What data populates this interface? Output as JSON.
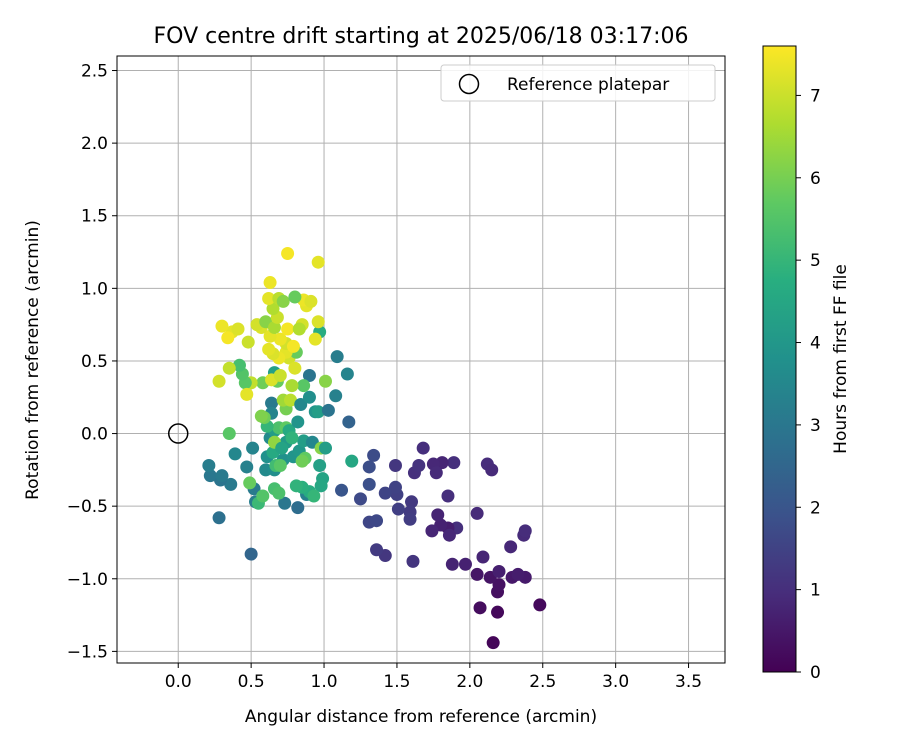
{
  "chart_data": {
    "type": "scatter",
    "title": "FOV centre drift starting at 2025/06/18 03:17:06",
    "xlabel": "Angular distance from reference (arcmin)",
    "ylabel": "Rotation from reference (arcmin)",
    "xlim": [
      -0.42,
      3.75
    ],
    "ylim": [
      -1.58,
      2.6
    ],
    "xticks": [
      "0.0",
      "0.5",
      "1.0",
      "1.5",
      "2.0",
      "2.5",
      "3.0",
      "3.5"
    ],
    "xtick_values": [
      0,
      0.5,
      1.0,
      1.5,
      2.0,
      2.5,
      3.0,
      3.5
    ],
    "yticks": [
      "−1.5",
      "−1.0",
      "−0.5",
      "0.0",
      "0.5",
      "1.0",
      "1.5",
      "2.0",
      "2.5"
    ],
    "ytick_values": [
      -1.5,
      -1.0,
      -0.5,
      0.0,
      0.5,
      1.0,
      1.5,
      2.0,
      2.5
    ],
    "grid": true,
    "legend_position": "top-right",
    "legend": [
      {
        "label": "Reference platepar",
        "marker": "hollow-circle"
      }
    ],
    "reference_point": {
      "x": 0.0,
      "y": 0.0
    },
    "colorbar": {
      "label": "Hours from first FF file",
      "range": [
        0,
        7.6
      ],
      "ticks": [
        "0",
        "1",
        "2",
        "3",
        "4",
        "5",
        "6",
        "7"
      ],
      "tick_values": [
        0,
        1,
        2,
        3,
        4,
        5,
        6,
        7
      ],
      "colormap": "viridis"
    },
    "points": [
      {
        "x": 2.16,
        "y": -1.44,
        "h": 0.1
      },
      {
        "x": 2.19,
        "y": -1.23,
        "h": 0.15
      },
      {
        "x": 2.48,
        "y": -1.18,
        "h": 0.2
      },
      {
        "x": 2.07,
        "y": -1.2,
        "h": 0.25
      },
      {
        "x": 2.19,
        "y": -1.09,
        "h": 0.3
      },
      {
        "x": 2.2,
        "y": -1.04,
        "h": 0.35
      },
      {
        "x": 2.14,
        "y": -0.99,
        "h": 0.4
      },
      {
        "x": 2.05,
        "y": -0.97,
        "h": 0.45
      },
      {
        "x": 2.29,
        "y": -0.99,
        "h": 0.5
      },
      {
        "x": 2.38,
        "y": -0.99,
        "h": 0.55
      },
      {
        "x": 2.33,
        "y": -0.97,
        "h": 0.6
      },
      {
        "x": 2.2,
        "y": -0.95,
        "h": 0.65
      },
      {
        "x": 1.97,
        "y": -0.9,
        "h": 0.7
      },
      {
        "x": 1.88,
        "y": -0.9,
        "h": 0.75
      },
      {
        "x": 2.09,
        "y": -0.85,
        "h": 0.8
      },
      {
        "x": 2.28,
        "y": -0.78,
        "h": 0.85
      },
      {
        "x": 2.37,
        "y": -0.7,
        "h": 0.9
      },
      {
        "x": 2.38,
        "y": -0.67,
        "h": 0.95
      },
      {
        "x": 1.91,
        "y": -0.65,
        "h": 1.0
      },
      {
        "x": 1.85,
        "y": -0.65,
        "h": 0.6
      },
      {
        "x": 1.8,
        "y": -0.63,
        "h": 0.7
      },
      {
        "x": 1.78,
        "y": -0.56,
        "h": 0.75
      },
      {
        "x": 1.74,
        "y": -0.67,
        "h": 0.8
      },
      {
        "x": 1.86,
        "y": -0.7,
        "h": 0.85
      },
      {
        "x": 2.05,
        "y": -0.55,
        "h": 0.9
      },
      {
        "x": 1.85,
        "y": -0.43,
        "h": 1.0
      },
      {
        "x": 2.12,
        "y": -0.21,
        "h": 0.95
      },
      {
        "x": 2.15,
        "y": -0.25,
        "h": 0.9
      },
      {
        "x": 1.89,
        "y": -0.2,
        "h": 1.0
      },
      {
        "x": 1.81,
        "y": -0.2,
        "h": 0.8
      },
      {
        "x": 1.75,
        "y": -0.21,
        "h": 0.85
      },
      {
        "x": 1.77,
        "y": -0.27,
        "h": 0.9
      },
      {
        "x": 1.68,
        "y": -0.1,
        "h": 1.0
      },
      {
        "x": 1.62,
        "y": -0.27,
        "h": 1.05
      },
      {
        "x": 1.65,
        "y": -0.22,
        "h": 1.1
      },
      {
        "x": 1.49,
        "y": -0.22,
        "h": 1.2
      },
      {
        "x": 1.6,
        "y": -0.47,
        "h": 1.25
      },
      {
        "x": 1.59,
        "y": -0.54,
        "h": 1.3
      },
      {
        "x": 1.59,
        "y": -0.59,
        "h": 1.35
      },
      {
        "x": 1.61,
        "y": -0.88,
        "h": 1.15
      },
      {
        "x": 1.42,
        "y": -0.84,
        "h": 1.2
      },
      {
        "x": 1.36,
        "y": -0.8,
        "h": 1.3
      },
      {
        "x": 1.51,
        "y": -0.52,
        "h": 1.4
      },
      {
        "x": 1.5,
        "y": -0.42,
        "h": 1.45
      },
      {
        "x": 1.49,
        "y": -0.37,
        "h": 1.5
      },
      {
        "x": 1.42,
        "y": -0.41,
        "h": 1.55
      },
      {
        "x": 1.31,
        "y": -0.61,
        "h": 1.6
      },
      {
        "x": 1.36,
        "y": -0.6,
        "h": 1.65
      },
      {
        "x": 1.25,
        "y": -0.45,
        "h": 1.7
      },
      {
        "x": 1.34,
        "y": -0.15,
        "h": 1.75
      },
      {
        "x": 1.31,
        "y": -0.23,
        "h": 1.8
      },
      {
        "x": 1.31,
        "y": -0.35,
        "h": 1.85
      },
      {
        "x": 1.12,
        "y": -0.39,
        "h": 2.0
      },
      {
        "x": 0.5,
        "y": -0.83,
        "h": 2.5
      },
      {
        "x": 0.28,
        "y": -0.58,
        "h": 2.8
      },
      {
        "x": 0.53,
        "y": -0.47,
        "h": 3.2
      },
      {
        "x": 0.88,
        "y": -0.42,
        "h": 3.3
      },
      {
        "x": 0.73,
        "y": -0.48,
        "h": 3.0
      },
      {
        "x": 0.82,
        "y": -0.51,
        "h": 2.7
      },
      {
        "x": 0.52,
        "y": -0.38,
        "h": 3.1
      },
      {
        "x": 0.36,
        "y": -0.35,
        "h": 3.1
      },
      {
        "x": 0.29,
        "y": -0.32,
        "h": 2.9
      },
      {
        "x": 0.22,
        "y": -0.29,
        "h": 3.0
      },
      {
        "x": 0.3,
        "y": -0.29,
        "h": 3.1
      },
      {
        "x": 0.21,
        "y": -0.22,
        "h": 3.2
      },
      {
        "x": 0.47,
        "y": -0.23,
        "h": 3.3
      },
      {
        "x": 0.51,
        "y": -0.1,
        "h": 3.4
      },
      {
        "x": 0.39,
        "y": -0.14,
        "h": 3.5
      },
      {
        "x": 0.6,
        "y": -0.25,
        "h": 3.6
      },
      {
        "x": 0.66,
        "y": -0.25,
        "h": 3.7
      },
      {
        "x": 0.72,
        "y": -0.18,
        "h": 3.8
      },
      {
        "x": 0.79,
        "y": -0.16,
        "h": 3.9
      },
      {
        "x": 0.83,
        "y": -0.12,
        "h": 4.0
      },
      {
        "x": 0.74,
        "y": -0.06,
        "h": 4.1
      },
      {
        "x": 0.86,
        "y": -0.05,
        "h": 4.2
      },
      {
        "x": 0.92,
        "y": -0.06,
        "h": 3.5
      },
      {
        "x": 0.97,
        "y": -0.22,
        "h": 4.3
      },
      {
        "x": 0.99,
        "y": -0.31,
        "h": 4.4
      },
      {
        "x": 0.98,
        "y": -0.36,
        "h": 4.5
      },
      {
        "x": 0.9,
        "y": -0.4,
        "h": 4.7
      },
      {
        "x": 0.85,
        "y": -0.37,
        "h": 4.8
      },
      {
        "x": 0.81,
        "y": -0.36,
        "h": 4.9
      },
      {
        "x": 0.93,
        "y": -0.43,
        "h": 5.0
      },
      {
        "x": 0.55,
        "y": -0.48,
        "h": 5.1
      },
      {
        "x": 0.66,
        "y": -0.38,
        "h": 5.3
      },
      {
        "x": 0.69,
        "y": -0.41,
        "h": 5.4
      },
      {
        "x": 0.58,
        "y": -0.43,
        "h": 5.5
      },
      {
        "x": 0.49,
        "y": -0.34,
        "h": 5.8
      },
      {
        "x": 0.61,
        "y": -0.16,
        "h": 3.8
      },
      {
        "x": 0.65,
        "y": -0.13,
        "h": 4.6
      },
      {
        "x": 0.67,
        "y": -0.22,
        "h": 5.2
      },
      {
        "x": 0.7,
        "y": -0.22,
        "h": 5.6
      },
      {
        "x": 0.87,
        "y": -0.17,
        "h": 5.7
      },
      {
        "x": 0.85,
        "y": -0.19,
        "h": 5.9
      },
      {
        "x": 0.98,
        "y": -0.1,
        "h": 6.2
      },
      {
        "x": 1.01,
        "y": -0.1,
        "h": 4.2
      },
      {
        "x": 1.19,
        "y": -0.19,
        "h": 4.5
      },
      {
        "x": 0.35,
        "y": 0.0,
        "h": 5.6
      },
      {
        "x": 0.63,
        "y": -0.03,
        "h": 3.6
      },
      {
        "x": 0.66,
        "y": 0.02,
        "h": 4.2
      },
      {
        "x": 0.69,
        "y": 0.04,
        "h": 5.4
      },
      {
        "x": 0.74,
        "y": 0.04,
        "h": 5.7
      },
      {
        "x": 0.76,
        "y": 0.02,
        "h": 4.6
      },
      {
        "x": 0.78,
        "y": -0.03,
        "h": 4.9
      },
      {
        "x": 0.66,
        "y": -0.06,
        "h": 6.3
      },
      {
        "x": 0.61,
        "y": 0.05,
        "h": 5.0
      },
      {
        "x": 0.71,
        "y": -0.1,
        "h": 4.4
      },
      {
        "x": 0.64,
        "y": 0.21,
        "h": 3.1
      },
      {
        "x": 0.64,
        "y": 0.14,
        "h": 3.4
      },
      {
        "x": 0.59,
        "y": 0.11,
        "h": 5.9
      },
      {
        "x": 0.57,
        "y": 0.12,
        "h": 6.1
      },
      {
        "x": 0.74,
        "y": 0.17,
        "h": 6.0
      },
      {
        "x": 0.72,
        "y": 0.23,
        "h": 6.5
      },
      {
        "x": 0.77,
        "y": 0.23,
        "h": 6.8
      },
      {
        "x": 0.82,
        "y": 0.08,
        "h": 3.9
      },
      {
        "x": 0.84,
        "y": 0.2,
        "h": 3.5
      },
      {
        "x": 0.9,
        "y": 0.25,
        "h": 3.7
      },
      {
        "x": 0.94,
        "y": 0.15,
        "h": 3.9
      },
      {
        "x": 0.96,
        "y": 0.15,
        "h": 4.2
      },
      {
        "x": 1.03,
        "y": 0.16,
        "h": 2.9
      },
      {
        "x": 1.08,
        "y": 0.26,
        "h": 3.3
      },
      {
        "x": 1.16,
        "y": 0.41,
        "h": 3.4
      },
      {
        "x": 1.17,
        "y": 0.08,
        "h": 2.4
      },
      {
        "x": 1.09,
        "y": 0.53,
        "h": 3.2
      },
      {
        "x": 1.01,
        "y": 0.36,
        "h": 6.2
      },
      {
        "x": 0.9,
        "y": 0.4,
        "h": 2.9
      },
      {
        "x": 0.86,
        "y": 0.33,
        "h": 5.6
      },
      {
        "x": 0.78,
        "y": 0.33,
        "h": 6.6
      },
      {
        "x": 0.68,
        "y": 0.36,
        "h": 5.8
      },
      {
        "x": 0.66,
        "y": 0.42,
        "h": 4.3
      },
      {
        "x": 0.58,
        "y": 0.35,
        "h": 5.9
      },
      {
        "x": 0.5,
        "y": 0.35,
        "h": 6.9
      },
      {
        "x": 0.46,
        "y": 0.35,
        "h": 5.6
      },
      {
        "x": 0.44,
        "y": 0.41,
        "h": 5.5
      },
      {
        "x": 0.42,
        "y": 0.47,
        "h": 5.3
      },
      {
        "x": 0.35,
        "y": 0.45,
        "h": 6.9
      },
      {
        "x": 0.28,
        "y": 0.36,
        "h": 7.1
      },
      {
        "x": 0.47,
        "y": 0.27,
        "h": 7.3
      },
      {
        "x": 0.64,
        "y": 0.37,
        "h": 7.2
      },
      {
        "x": 0.7,
        "y": 0.4,
        "h": 7.0
      },
      {
        "x": 0.76,
        "y": 0.52,
        "h": 7.1
      },
      {
        "x": 0.8,
        "y": 0.45,
        "h": 7.2
      },
      {
        "x": 0.81,
        "y": 0.56,
        "h": 5.8
      },
      {
        "x": 0.74,
        "y": 0.56,
        "h": 7.3
      },
      {
        "x": 0.69,
        "y": 0.52,
        "h": 7.4
      },
      {
        "x": 0.65,
        "y": 0.55,
        "h": 7.2
      },
      {
        "x": 0.62,
        "y": 0.58,
        "h": 7.3
      },
      {
        "x": 0.74,
        "y": 0.62,
        "h": 7.1
      },
      {
        "x": 0.79,
        "y": 0.6,
        "h": 7.5
      },
      {
        "x": 0.7,
        "y": 0.65,
        "h": 7.4
      },
      {
        "x": 0.63,
        "y": 0.67,
        "h": 7.3
      },
      {
        "x": 0.57,
        "y": 0.73,
        "h": 7.2
      },
      {
        "x": 0.54,
        "y": 0.75,
        "h": 7.1
      },
      {
        "x": 0.48,
        "y": 0.63,
        "h": 7.0
      },
      {
        "x": 0.37,
        "y": 0.7,
        "h": 7.3
      },
      {
        "x": 0.3,
        "y": 0.74,
        "h": 7.4
      },
      {
        "x": 0.34,
        "y": 0.66,
        "h": 7.5
      },
      {
        "x": 0.41,
        "y": 0.72,
        "h": 7.2
      },
      {
        "x": 0.6,
        "y": 0.77,
        "h": 6.2
      },
      {
        "x": 0.66,
        "y": 0.73,
        "h": 6.6
      },
      {
        "x": 0.68,
        "y": 0.8,
        "h": 7.0
      },
      {
        "x": 0.65,
        "y": 0.86,
        "h": 6.7
      },
      {
        "x": 0.62,
        "y": 0.93,
        "h": 7.3
      },
      {
        "x": 0.69,
        "y": 0.93,
        "h": 6.8
      },
      {
        "x": 0.72,
        "y": 0.91,
        "h": 6.2
      },
      {
        "x": 0.75,
        "y": 0.72,
        "h": 7.5
      },
      {
        "x": 0.85,
        "y": 0.75,
        "h": 7.1
      },
      {
        "x": 0.83,
        "y": 0.72,
        "h": 6.7
      },
      {
        "x": 0.88,
        "y": 0.88,
        "h": 7.3
      },
      {
        "x": 0.86,
        "y": 0.92,
        "h": 7.4
      },
      {
        "x": 0.91,
        "y": 0.91,
        "h": 7.2
      },
      {
        "x": 0.8,
        "y": 0.94,
        "h": 5.8
      },
      {
        "x": 0.97,
        "y": 0.7,
        "h": 4.7
      },
      {
        "x": 0.94,
        "y": 0.65,
        "h": 7.3
      },
      {
        "x": 0.96,
        "y": 0.77,
        "h": 7.2
      },
      {
        "x": 0.63,
        "y": 1.04,
        "h": 7.4
      },
      {
        "x": 0.75,
        "y": 1.24,
        "h": 7.5
      },
      {
        "x": 0.96,
        "y": 1.18,
        "h": 7.3
      }
    ]
  }
}
